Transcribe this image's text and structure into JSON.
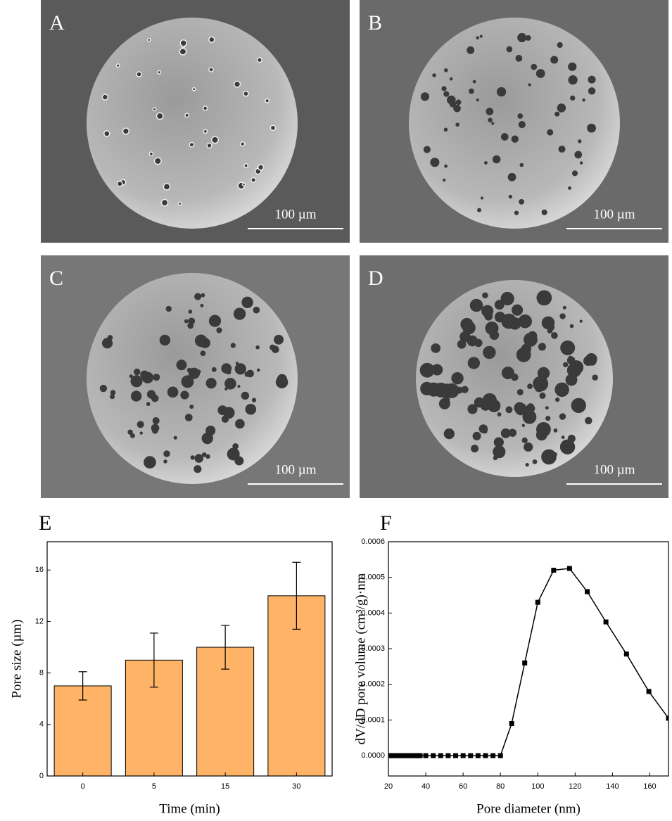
{
  "images": [
    {
      "label": "A",
      "scale_bar": "100 µm"
    },
    {
      "label": "B",
      "scale_bar": "100 µm"
    },
    {
      "label": "C",
      "scale_bar": "100 µm"
    },
    {
      "label": "D",
      "scale_bar": "100 µm"
    }
  ],
  "chart_data": [
    {
      "type": "bar",
      "title": "E",
      "x_label": "Time (min)",
      "y_label": "Pore size (µm)",
      "categories": [
        "0",
        "5",
        "15",
        "30"
      ],
      "values": [
        7,
        9,
        10,
        14
      ],
      "errors": [
        1.1,
        2.1,
        1.7,
        2.6
      ],
      "color": "#ffb366",
      "ylim": [
        0,
        18.2
      ],
      "yticks": [
        0,
        4,
        8,
        12,
        16
      ]
    },
    {
      "type": "line",
      "title": "F",
      "x_label": "Pore diameter (nm)",
      "y_label": "dV/dD pore volume (cm³/g)·nm",
      "x": [
        20,
        21,
        22,
        23,
        24,
        25,
        26,
        27,
        28,
        29,
        30,
        31,
        32,
        33,
        34,
        35,
        36,
        37,
        40,
        44,
        48,
        52,
        56,
        60,
        64,
        68,
        72,
        76,
        80,
        86,
        93,
        100,
        108.5,
        117,
        126.5,
        136.5,
        147.5,
        159.5,
        170
      ],
      "values": [
        0,
        0,
        0,
        0,
        0,
        0,
        0,
        0,
        0,
        0,
        0,
        0,
        0,
        0,
        0,
        0,
        0,
        0,
        0,
        0,
        0,
        0,
        0,
        0,
        0,
        0,
        0,
        0,
        0,
        9e-05,
        0.00026,
        0.00043,
        0.00052,
        0.000525,
        0.00046,
        0.000375,
        0.000285,
        0.00018,
        0.000105
      ],
      "color": "#000000",
      "xlim": [
        20,
        170
      ],
      "ylim": [
        -5.7e-05,
        0.0006
      ],
      "xticks": [
        20,
        40,
        60,
        80,
        100,
        120,
        140,
        160
      ],
      "yticks": [
        {
          "value": 0,
          "label": "0.0000"
        },
        {
          "value": 0.0001,
          "label": "0.0001"
        },
        {
          "value": 0.0002,
          "label": "0.0002"
        },
        {
          "value": 0.0003,
          "label": "0.0003"
        },
        {
          "value": 0.0004,
          "label": "0.0004"
        },
        {
          "value": 0.0005,
          "label": "0.0005"
        },
        {
          "value": 0.0006,
          "label": "0.0006"
        }
      ]
    }
  ]
}
